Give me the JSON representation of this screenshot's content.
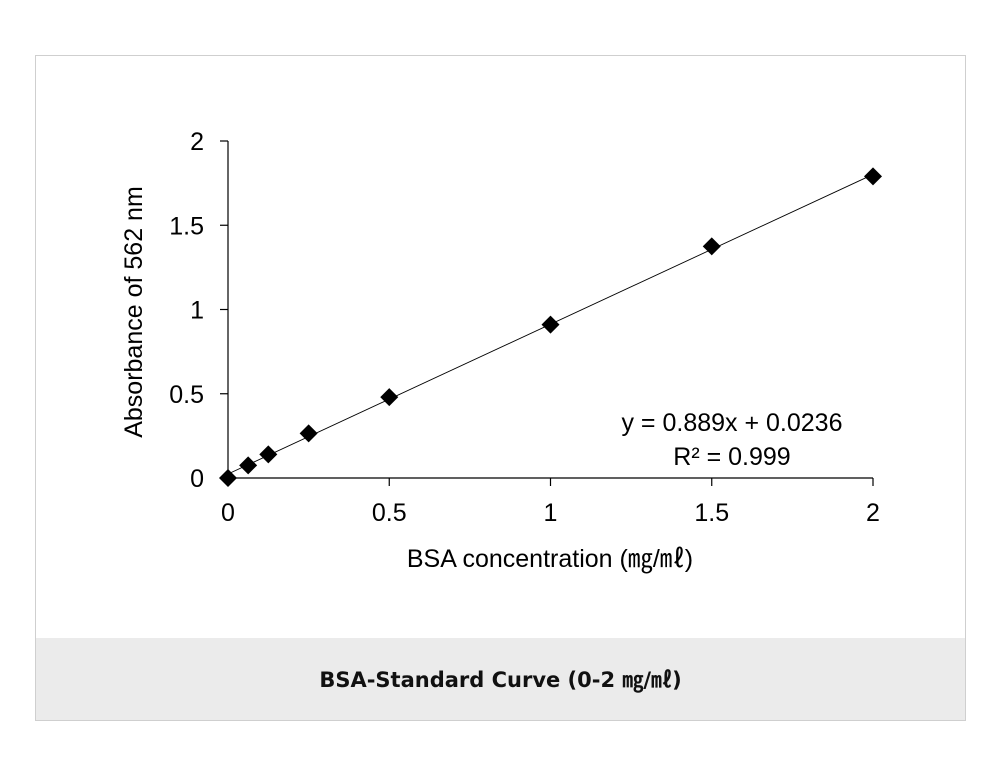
{
  "caption": "BSA-Standard Curve (0-2 ㎎/㎖)",
  "chart_data": {
    "type": "scatter",
    "xlabel": "BSA concentration (㎎/㎖)",
    "ylabel": "Absorbance of 562 nm",
    "xlim": [
      0,
      2
    ],
    "ylim": [
      0,
      2
    ],
    "xticks": [
      "0",
      "0.5",
      "1",
      "1.5",
      "2"
    ],
    "yticks": [
      "0",
      "0.5",
      "1",
      "1.5",
      "2"
    ],
    "grid": false,
    "marker": "diamond",
    "marker_color": "#000000",
    "points": [
      {
        "x": 0,
        "y": 0
      },
      {
        "x": 0.0625,
        "y": 0.075
      },
      {
        "x": 0.125,
        "y": 0.14
      },
      {
        "x": 0.25,
        "y": 0.265
      },
      {
        "x": 0.5,
        "y": 0.48
      },
      {
        "x": 1,
        "y": 0.91
      },
      {
        "x": 1.5,
        "y": 1.375
      },
      {
        "x": 2,
        "y": 1.79
      }
    ],
    "trendline": {
      "slope": 0.889,
      "intercept": 0.0236,
      "x_range": [
        0,
        2
      ]
    },
    "annotations": {
      "equation": "y = 0.889x + 0.0236",
      "r_squared": "R² = 0.999"
    }
  }
}
